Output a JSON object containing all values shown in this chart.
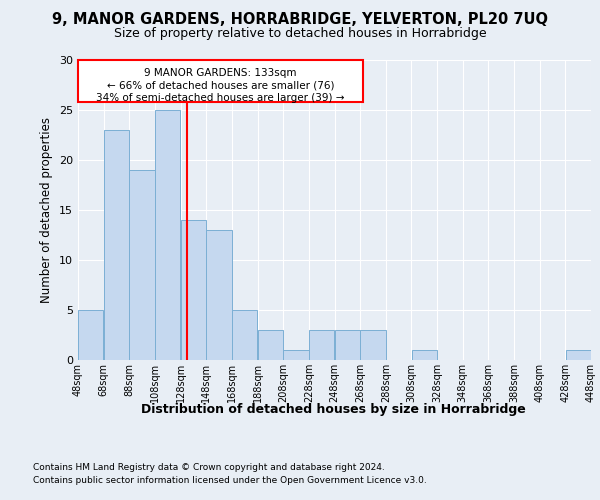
{
  "title_line1": "9, MANOR GARDENS, HORRABRIDGE, YELVERTON, PL20 7UQ",
  "title_line2": "Size of property relative to detached houses in Horrabridge",
  "xlabel": "Distribution of detached houses by size in Horrabridge",
  "ylabel": "Number of detached properties",
  "annotation_line1": "9 MANOR GARDENS: 133sqm",
  "annotation_line2": "← 66% of detached houses are smaller (76)",
  "annotation_line3": "34% of semi-detached houses are larger (39) →",
  "property_size": 133,
  "bar_color": "#c5d8ef",
  "bar_edge_color": "#7bafd4",
  "vline_color": "red",
  "annotation_box_color": "red",
  "footer_line1": "Contains HM Land Registry data © Crown copyright and database right 2024.",
  "footer_line2": "Contains public sector information licensed under the Open Government Licence v3.0.",
  "bins": [
    48,
    68,
    88,
    108,
    128,
    148,
    168,
    188,
    208,
    228,
    248,
    268,
    288,
    308,
    328,
    348,
    368,
    388,
    408,
    428,
    448
  ],
  "values": [
    5,
    23,
    19,
    25,
    14,
    13,
    5,
    3,
    1,
    3,
    3,
    3,
    0,
    1,
    0,
    0,
    0,
    0,
    0,
    1
  ],
  "ylim": [
    0,
    30
  ],
  "yticks": [
    0,
    5,
    10,
    15,
    20,
    25,
    30
  ],
  "background_color": "#e8eef5",
  "plot_bg_color": "#e8eef5",
  "grid_color": "#ffffff"
}
